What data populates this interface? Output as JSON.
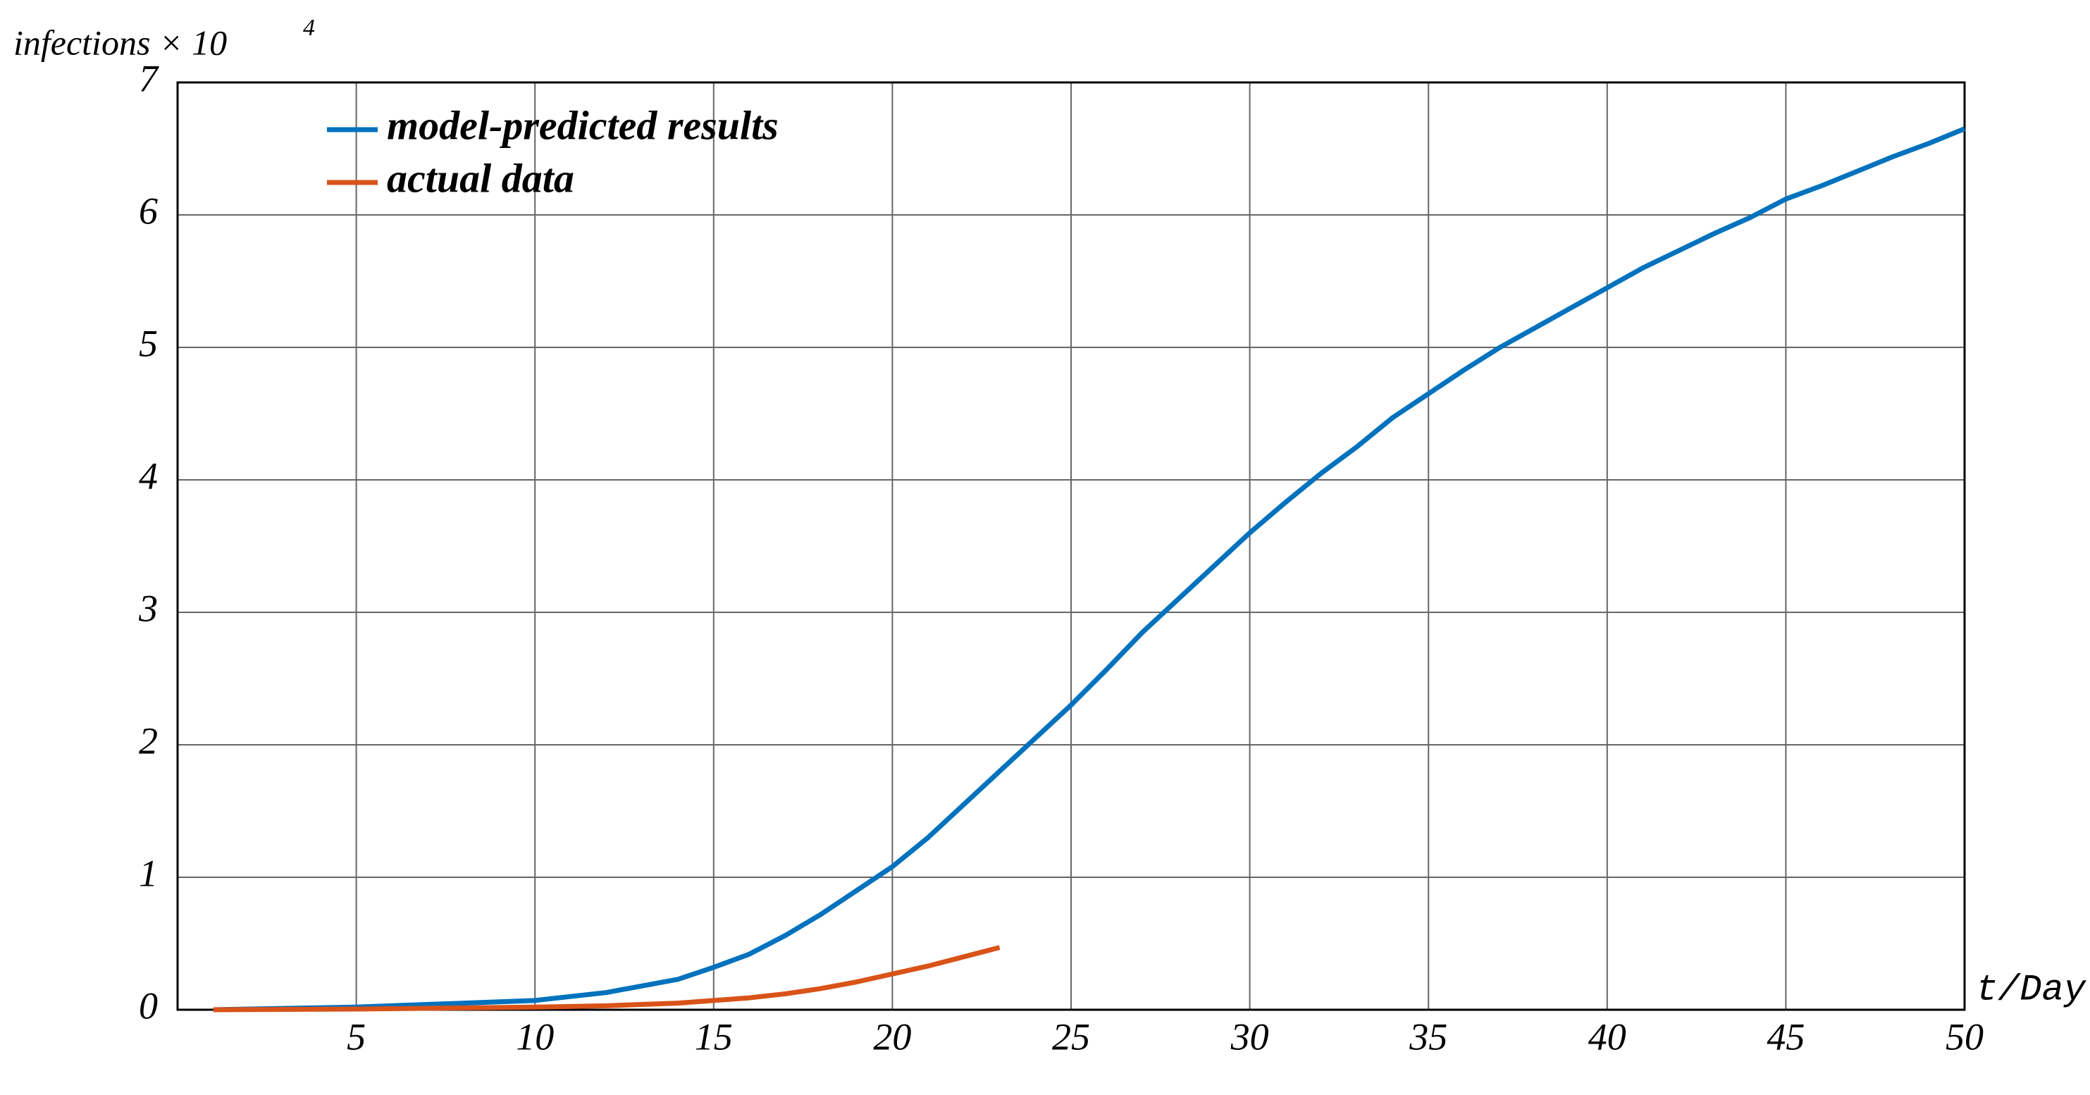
{
  "chart_data": {
    "type": "line",
    "ylabel": "infections × 10",
    "ylabel_exponent": "4",
    "xlabel": "t/Day",
    "xlim": [
      0,
      50
    ],
    "ylim": [
      0,
      7
    ],
    "xticks": [
      5,
      10,
      15,
      20,
      25,
      30,
      35,
      40,
      45,
      50
    ],
    "yticks": [
      0,
      1,
      2,
      3,
      4,
      5,
      6,
      7
    ],
    "grid": true,
    "legend": "upper left",
    "series": [
      {
        "name": "model-predicted results",
        "color": "#0072bd",
        "x": [
          1,
          5,
          10,
          12,
          14,
          15,
          16,
          17,
          18,
          19,
          20,
          21,
          22,
          23,
          24,
          25,
          26,
          27,
          28,
          29,
          30,
          31,
          32,
          33,
          34,
          35,
          36,
          37,
          38,
          39,
          40,
          41,
          42,
          43,
          44,
          45,
          46,
          47,
          48,
          49,
          50
        ],
        "values": [
          0.0,
          0.02,
          0.07,
          0.13,
          0.23,
          0.32,
          0.42,
          0.56,
          0.72,
          0.9,
          1.08,
          1.3,
          1.55,
          1.8,
          2.05,
          2.3,
          2.57,
          2.85,
          3.1,
          3.35,
          3.6,
          3.83,
          4.05,
          4.25,
          4.47,
          4.65,
          4.83,
          5.0,
          5.15,
          5.3,
          5.45,
          5.6,
          5.73,
          5.86,
          5.98,
          6.12,
          6.22,
          6.33,
          6.44,
          6.54,
          6.65
        ]
      },
      {
        "name": "actual data",
        "color": "#d95319",
        "x": [
          1,
          5,
          10,
          12,
          14,
          15,
          16,
          17,
          18,
          19,
          20,
          21,
          22,
          23
        ],
        "values": [
          0.0,
          0.005,
          0.02,
          0.03,
          0.05,
          0.07,
          0.09,
          0.12,
          0.16,
          0.21,
          0.27,
          0.33,
          0.4,
          0.47
        ]
      }
    ]
  }
}
